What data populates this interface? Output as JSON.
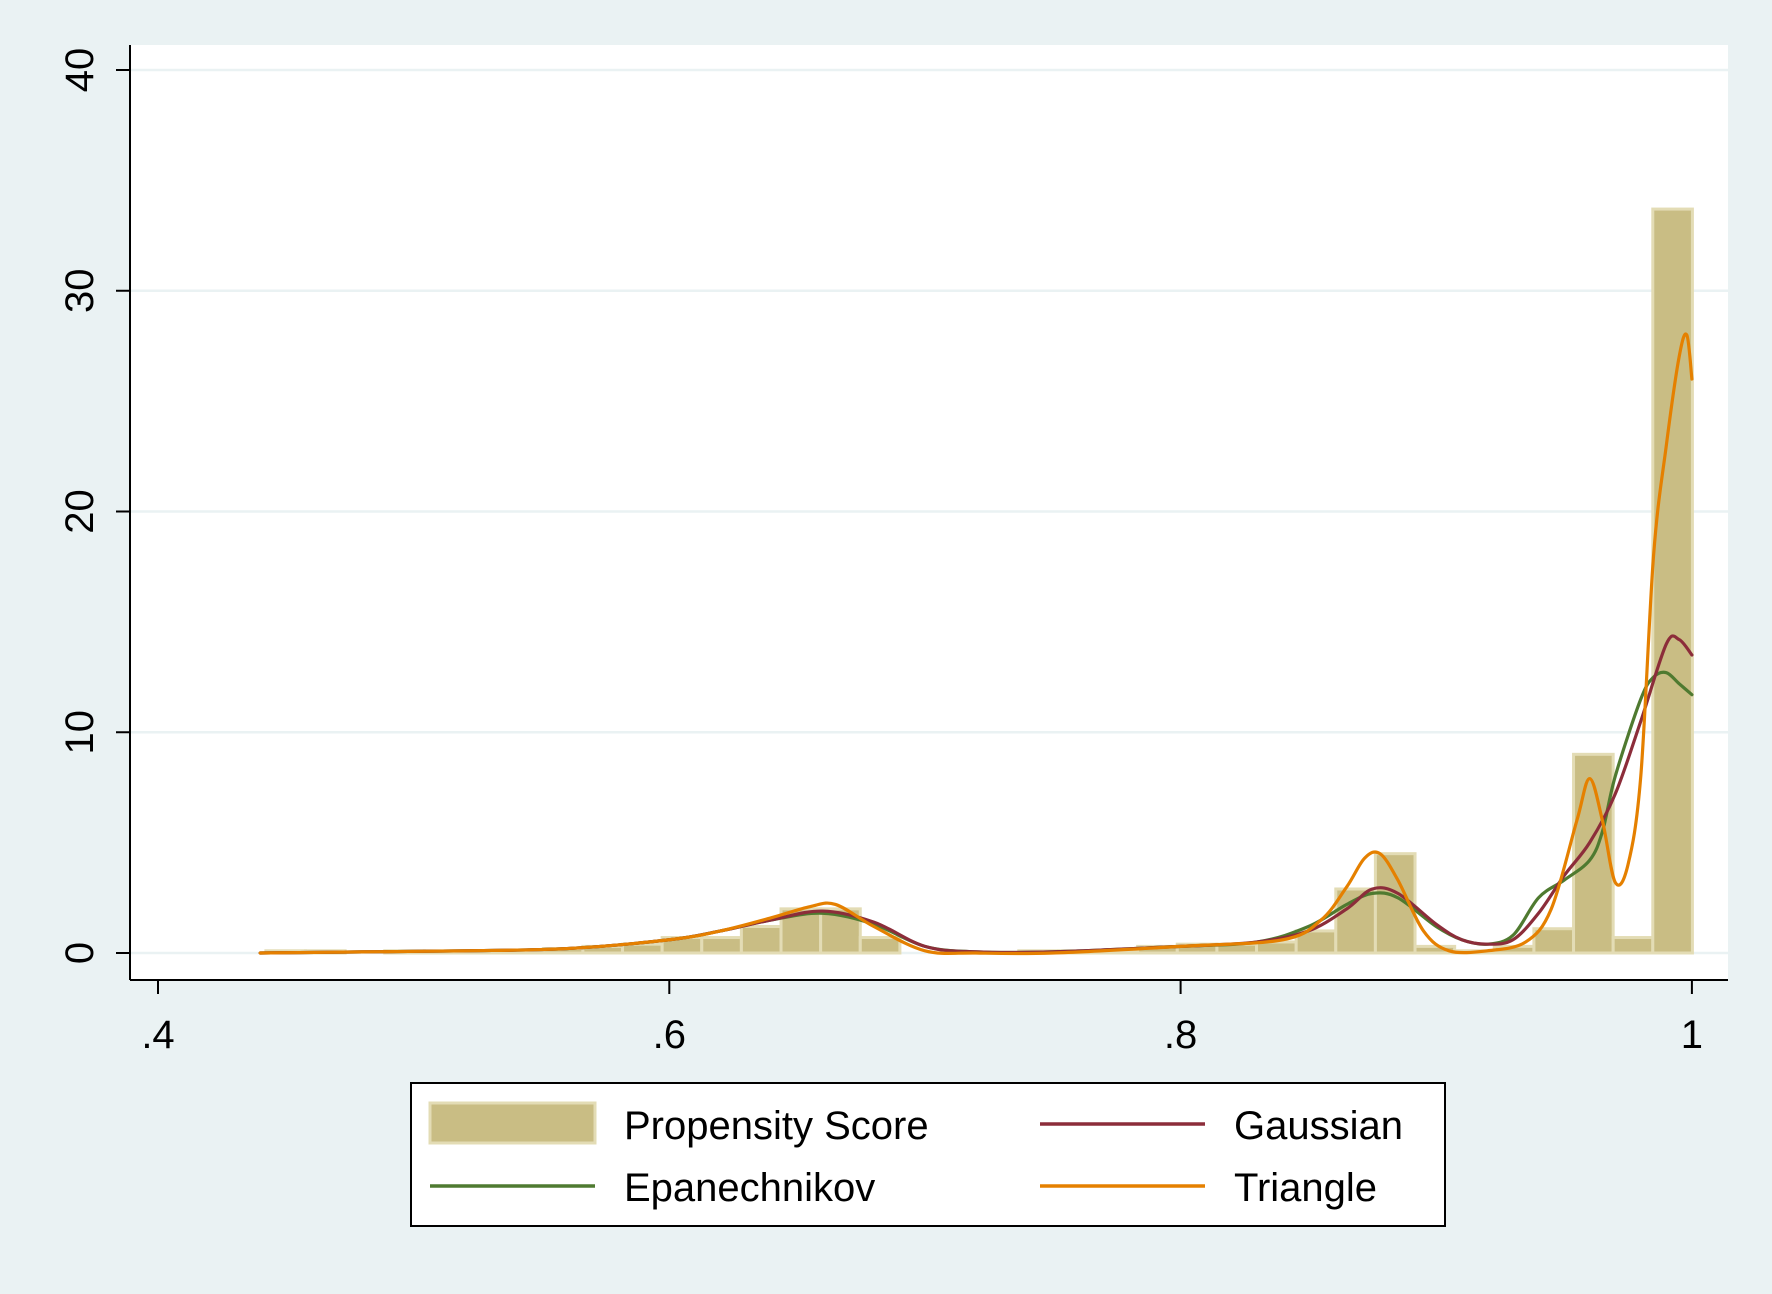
{
  "chart_data": {
    "type": "bar",
    "title": "",
    "xlabel": "",
    "ylabel": "",
    "xlim": [
      0.4,
      1.005
    ],
    "ylim": [
      0,
      40
    ],
    "x_ticks": [
      {
        "value": 0.4,
        "label": ".4"
      },
      {
        "value": 0.6,
        "label": ".6"
      },
      {
        "value": 0.8,
        "label": ".8"
      },
      {
        "value": 1.0,
        "label": "1"
      }
    ],
    "y_ticks": [
      {
        "value": 0,
        "label": "0"
      },
      {
        "value": 10,
        "label": "10"
      },
      {
        "value": 20,
        "label": "20"
      },
      {
        "value": 30,
        "label": "30"
      },
      {
        "value": 40,
        "label": "40"
      }
    ],
    "grid": "horizontal",
    "legend_position": "bottom",
    "colors": {
      "histogram": "#c9bd84",
      "histogram_edge": "#e3dcb5",
      "gaussian": "#8c2d3a",
      "epanechnikov": "#4f7a30",
      "triangle": "#e58000",
      "grid": "#eaf2f3",
      "plot_bg": "#ffffff",
      "page_bg": "#eaf2f3"
    },
    "histogram": {
      "name": "Propensity Score",
      "bin_width": 0.0155,
      "bins": [
        {
          "x": 0.4422,
          "y": 0.1
        },
        {
          "x": 0.4577,
          "y": 0.1
        },
        {
          "x": 0.4732,
          "y": 0.0
        },
        {
          "x": 0.4887,
          "y": 0.1
        },
        {
          "x": 0.5042,
          "y": 0.1
        },
        {
          "x": 0.5197,
          "y": 0.1
        },
        {
          "x": 0.5352,
          "y": 0.1
        },
        {
          "x": 0.5507,
          "y": 0.2
        },
        {
          "x": 0.5662,
          "y": 0.3
        },
        {
          "x": 0.5817,
          "y": 0.4
        },
        {
          "x": 0.5972,
          "y": 0.7
        },
        {
          "x": 0.6127,
          "y": 0.7
        },
        {
          "x": 0.6282,
          "y": 1.2
        },
        {
          "x": 0.6437,
          "y": 2.0
        },
        {
          "x": 0.6592,
          "y": 2.0
        },
        {
          "x": 0.6747,
          "y": 0.7
        },
        {
          "x": 0.6902,
          "y": 0.0
        },
        {
          "x": 0.7057,
          "y": 0.0
        },
        {
          "x": 0.7212,
          "y": 0.0
        },
        {
          "x": 0.7367,
          "y": 0.1
        },
        {
          "x": 0.7522,
          "y": 0.1
        },
        {
          "x": 0.7677,
          "y": 0.1
        },
        {
          "x": 0.7832,
          "y": 0.3
        },
        {
          "x": 0.7987,
          "y": 0.4
        },
        {
          "x": 0.8142,
          "y": 0.4
        },
        {
          "x": 0.8297,
          "y": 0.5
        },
        {
          "x": 0.8452,
          "y": 1.0
        },
        {
          "x": 0.8607,
          "y": 2.9
        },
        {
          "x": 0.8762,
          "y": 4.5
        },
        {
          "x": 0.8917,
          "y": 0.3
        },
        {
          "x": 0.9072,
          "y": 0.1
        },
        {
          "x": 0.9227,
          "y": 0.3
        },
        {
          "x": 0.9382,
          "y": 1.1
        },
        {
          "x": 0.9537,
          "y": 9.0
        },
        {
          "x": 0.9692,
          "y": 0.7
        },
        {
          "x": 0.9847,
          "y": 33.7
        }
      ]
    },
    "series": [
      {
        "name": "Gaussian",
        "type": "line",
        "x": [
          0.44,
          0.48,
          0.52,
          0.56,
          0.6,
          0.62,
          0.64,
          0.66,
          0.68,
          0.7,
          0.72,
          0.75,
          0.8,
          0.83,
          0.85,
          0.865,
          0.875,
          0.885,
          0.9,
          0.91,
          0.92,
          0.93,
          0.94,
          0.95,
          0.96,
          0.97,
          0.98,
          0.99,
          0.995,
          1.0
        ],
        "y": [
          0.0,
          0.05,
          0.1,
          0.2,
          0.6,
          1.0,
          1.5,
          1.9,
          1.4,
          0.3,
          0.05,
          0.05,
          0.3,
          0.5,
          1.0,
          2.0,
          2.9,
          2.7,
          1.3,
          0.6,
          0.4,
          0.6,
          1.8,
          3.5,
          5.0,
          7.2,
          10.5,
          14.0,
          14.2,
          13.5
        ]
      },
      {
        "name": "Epanechnikov",
        "type": "line",
        "x": [
          0.44,
          0.48,
          0.52,
          0.56,
          0.6,
          0.62,
          0.64,
          0.66,
          0.68,
          0.7,
          0.72,
          0.75,
          0.8,
          0.83,
          0.85,
          0.865,
          0.875,
          0.885,
          0.9,
          0.91,
          0.92,
          0.93,
          0.94,
          0.95,
          0.96,
          0.965,
          0.97,
          0.98,
          0.985,
          0.99,
          0.995,
          1.0
        ],
        "y": [
          0.0,
          0.05,
          0.1,
          0.2,
          0.6,
          1.0,
          1.5,
          1.8,
          1.3,
          0.3,
          0.05,
          0.05,
          0.3,
          0.5,
          1.2,
          2.2,
          2.7,
          2.5,
          1.2,
          0.6,
          0.4,
          0.8,
          2.5,
          3.3,
          4.2,
          5.5,
          8.0,
          11.5,
          12.5,
          12.7,
          12.2,
          11.7
        ]
      },
      {
        "name": "Triangle",
        "type": "line",
        "x": [
          0.44,
          0.48,
          0.52,
          0.56,
          0.6,
          0.62,
          0.64,
          0.655,
          0.665,
          0.68,
          0.7,
          0.72,
          0.75,
          0.8,
          0.84,
          0.855,
          0.865,
          0.872,
          0.878,
          0.885,
          0.895,
          0.905,
          0.92,
          0.935,
          0.945,
          0.955,
          0.96,
          0.965,
          0.97,
          0.975,
          0.98,
          0.985,
          0.99,
          0.995,
          0.998,
          1.0
        ],
        "y": [
          0.0,
          0.05,
          0.1,
          0.2,
          0.6,
          1.0,
          1.6,
          2.1,
          2.2,
          1.2,
          0.1,
          0.0,
          0.0,
          0.3,
          0.6,
          1.5,
          3.0,
          4.3,
          4.5,
          3.3,
          1.0,
          0.1,
          0.1,
          0.5,
          2.0,
          6.0,
          7.9,
          6.0,
          3.2,
          4.0,
          8.0,
          18.0,
          23.0,
          27.0,
          28.0,
          26.0
        ]
      }
    ],
    "legend": [
      {
        "label": "Propensity Score",
        "kind": "bar",
        "series": "histogram"
      },
      {
        "label": "Gaussian",
        "kind": "line",
        "series": "gaussian"
      },
      {
        "label": "Epanechnikov",
        "kind": "line",
        "series": "epanechnikov"
      },
      {
        "label": "Triangle",
        "kind": "line",
        "series": "triangle"
      }
    ]
  }
}
